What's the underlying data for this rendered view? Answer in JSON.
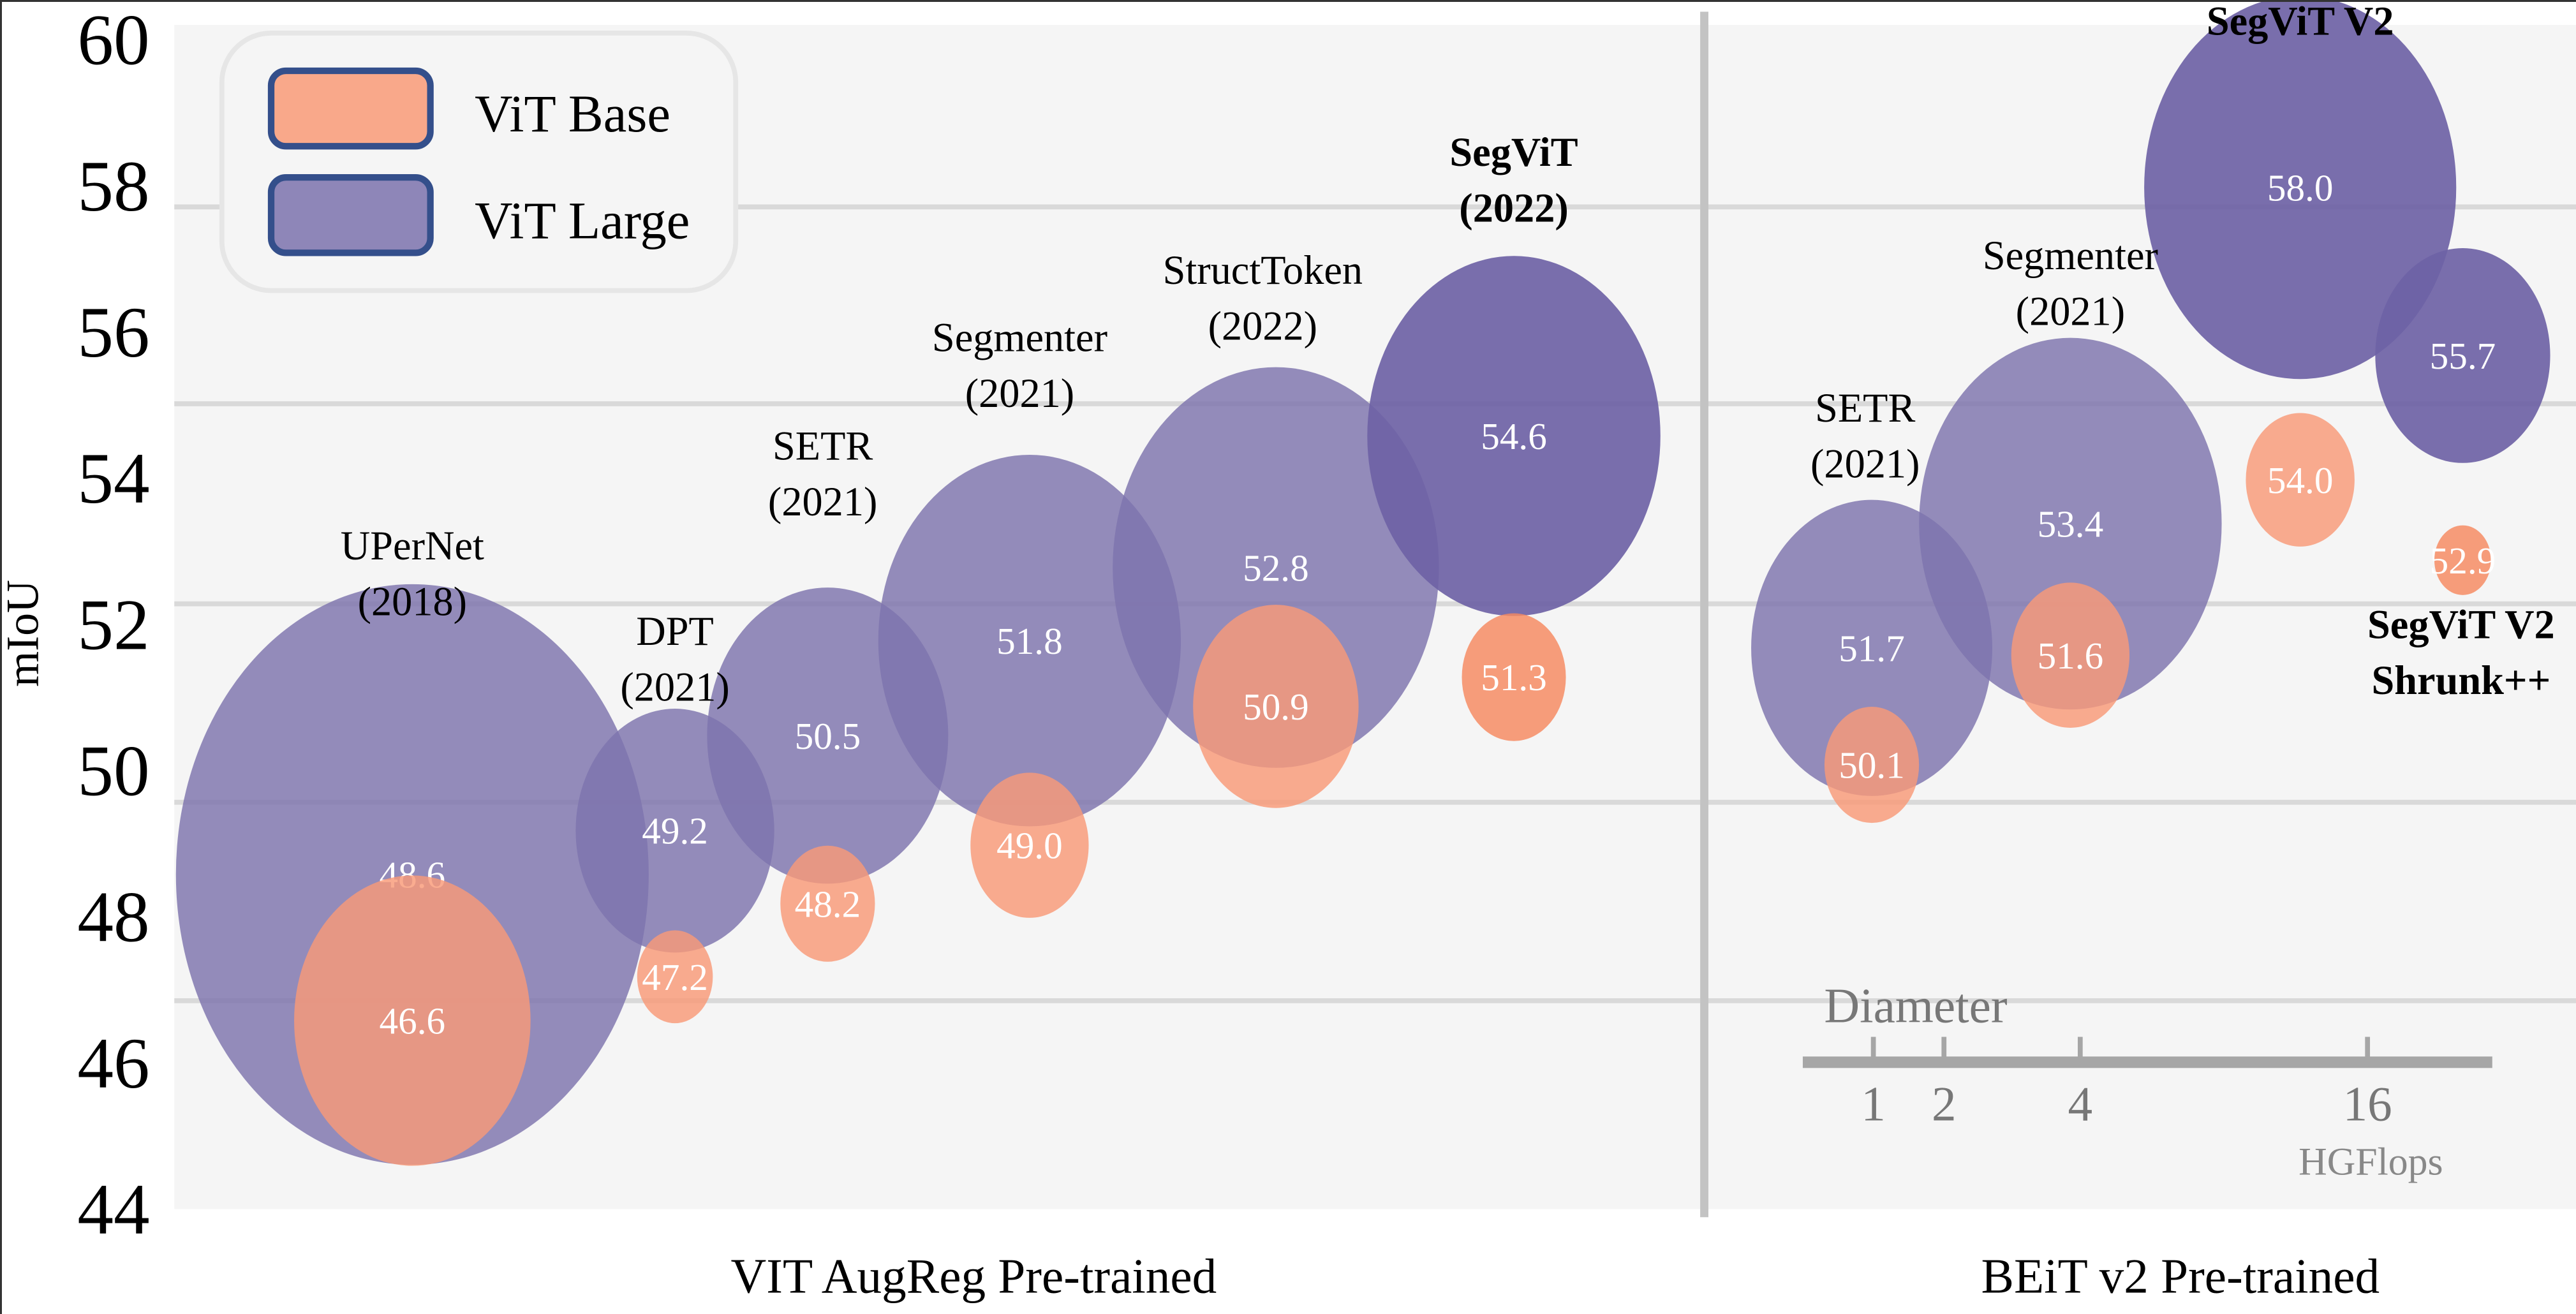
{
  "chart_data": {
    "type": "bubble",
    "title": "",
    "ylabel": "mIoU",
    "ylim": [
      44,
      60
    ],
    "yticks": [
      60,
      58,
      56,
      54,
      52,
      50,
      48,
      46,
      44
    ],
    "grid": true,
    "groups": [
      {
        "name": "VIT AugReg Pre-trained"
      },
      {
        "name": "BEiT v2 Pre-trained"
      }
    ],
    "legend": {
      "placement": "top-left",
      "entries": [
        {
          "name": "ViT Base",
          "color": "#f9a88a"
        },
        {
          "name": "ViT Large",
          "color": "#8e86b8"
        }
      ]
    },
    "size_legend": {
      "title": "Diameter",
      "ticks": [
        "1",
        "2",
        "4",
        "16"
      ],
      "unit": "HGFlops"
    },
    "methods": [
      {
        "label": "UPerNet",
        "year": "(2018)",
        "group": 0,
        "bold": false,
        "large": {
          "value": 48.6,
          "label": "48.6",
          "rel_diameter": 1.0
        },
        "base": {
          "value": 46.6,
          "label": "46.6",
          "rel_diameter": 0.5
        }
      },
      {
        "label": "DPT",
        "year": "(2021)",
        "group": 0,
        "bold": false,
        "large": {
          "value": 49.2,
          "label": "49.2",
          "rel_diameter": 0.42
        },
        "base": {
          "value": 47.2,
          "label": "47.2",
          "rel_diameter": 0.16
        }
      },
      {
        "label": "SETR",
        "year": "(2021)",
        "group": 0,
        "bold": false,
        "large": {
          "value": 50.5,
          "label": "50.5",
          "rel_diameter": 0.51
        },
        "base": {
          "value": 48.2,
          "label": "48.2",
          "rel_diameter": 0.2
        }
      },
      {
        "label": "Segmenter",
        "year": "(2021)",
        "group": 0,
        "bold": false,
        "large": {
          "value": 51.8,
          "label": "51.8",
          "rel_diameter": 0.64
        },
        "base": {
          "value": 49.0,
          "label": "49.0",
          "rel_diameter": 0.25
        }
      },
      {
        "label": "StructToken",
        "year": "(2022)",
        "group": 0,
        "bold": false,
        "large": {
          "value": 52.8,
          "label": "52.8",
          "rel_diameter": 0.69
        },
        "base": {
          "value": 50.9,
          "label": "50.9",
          "rel_diameter": 0.35
        }
      },
      {
        "label": "SegViT",
        "year": "(2022)",
        "group": 0,
        "bold": true,
        "large": {
          "value": 54.6,
          "label": "54.6",
          "rel_diameter": 0.62
        },
        "base": {
          "value": 51.3,
          "label": "51.3",
          "rel_diameter": 0.22
        }
      },
      {
        "label": "SETR",
        "year": "(2021)",
        "group": 1,
        "bold": false,
        "large": {
          "value": 51.7,
          "label": "51.7",
          "rel_diameter": 0.51
        },
        "base": {
          "value": 50.1,
          "label": "50.1",
          "rel_diameter": 0.2
        }
      },
      {
        "label": "Segmenter",
        "year": "(2021)",
        "group": 1,
        "bold": false,
        "large": {
          "value": 53.4,
          "label": "53.4",
          "rel_diameter": 0.64
        },
        "base": {
          "value": 51.6,
          "label": "51.6",
          "rel_diameter": 0.25
        }
      },
      {
        "label": "SegViT V2",
        "year": "",
        "group": 1,
        "bold": true,
        "large": {
          "value": 58.0,
          "label": "58.0",
          "rel_diameter": 0.66
        },
        "base": {
          "value": 54.0,
          "label": "54.0",
          "rel_diameter": 0.23
        }
      },
      {
        "label": "SegViT V2",
        "year": "Shrunk++",
        "group": 1,
        "bold": true,
        "large": {
          "value": 55.7,
          "label": "55.7",
          "rel_diameter": 0.37
        },
        "base": {
          "value": 52.9,
          "label": "52.9",
          "rel_diameter": 0.12
        }
      }
    ]
  }
}
